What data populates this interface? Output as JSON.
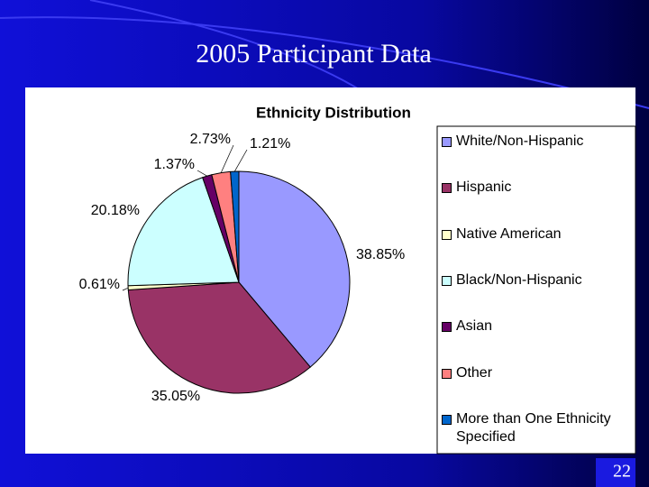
{
  "slide": {
    "title": "2005 Participant Data",
    "number": "22"
  },
  "chart_data": {
    "type": "pie",
    "title": "Ethnicity Distribution",
    "categories": [
      "White/Non-Hispanic",
      "Hispanic",
      "Native American",
      "Black/Non-Hispanic",
      "Asian",
      "Other",
      "More than One Ethnicity Specified"
    ],
    "values": [
      38.85,
      35.05,
      0.61,
      20.18,
      1.37,
      2.73,
      1.21
    ],
    "value_labels": [
      "38.85%",
      "35.05%",
      "0.61%",
      "20.18%",
      "1.37%",
      "2.73%",
      "1.21%"
    ],
    "colors": [
      "#9999ff",
      "#993366",
      "#ffffcc",
      "#ccffff",
      "#660066",
      "#ff8080",
      "#0066cc"
    ],
    "legend": "right"
  }
}
